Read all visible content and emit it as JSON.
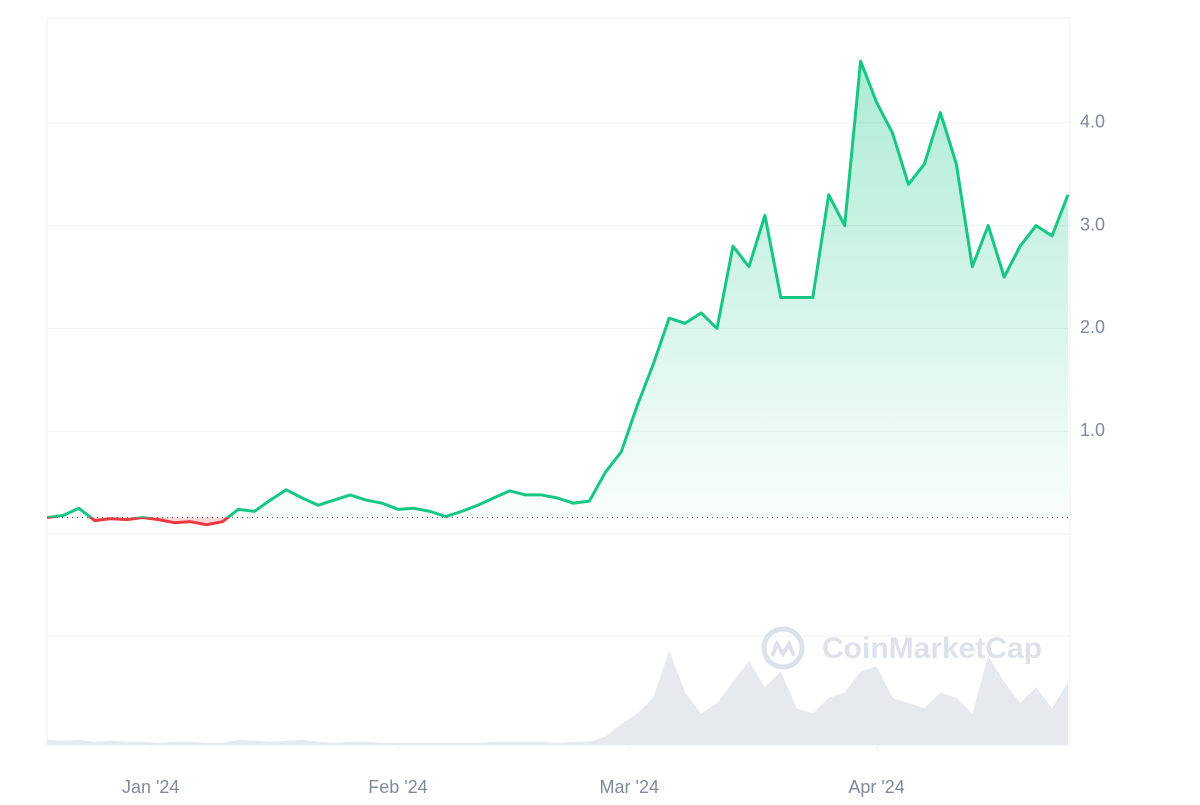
{
  "chart_data": {
    "type": "line",
    "watermark": "CoinMarketCap",
    "x": [
      0,
      2,
      4,
      6,
      8,
      10,
      12,
      14,
      16,
      18,
      20,
      22,
      24,
      26,
      28,
      30,
      32,
      34,
      36,
      38,
      40,
      42,
      44,
      46,
      48,
      50,
      52,
      54,
      56,
      58,
      60,
      62,
      64,
      66,
      68,
      70,
      72,
      74,
      76,
      78,
      80,
      82,
      84,
      86,
      88,
      90,
      92,
      94,
      96,
      98,
      100,
      102,
      104,
      106,
      108,
      110,
      112,
      114,
      116,
      118,
      120,
      122,
      124,
      126,
      128
    ],
    "series": [
      {
        "name": "Price",
        "color": "#16c784",
        "down_color": "#ea3943",
        "values": [
          0.16,
          0.18,
          0.25,
          0.13,
          0.15,
          0.14,
          0.16,
          0.14,
          0.11,
          0.12,
          0.09,
          0.12,
          0.24,
          0.22,
          0.33,
          0.43,
          0.35,
          0.28,
          0.33,
          0.38,
          0.33,
          0.3,
          0.24,
          0.25,
          0.22,
          0.17,
          0.22,
          0.28,
          0.35,
          0.42,
          0.38,
          0.38,
          0.35,
          0.3,
          0.32,
          0.6,
          0.8,
          1.25,
          1.65,
          2.1,
          2.05,
          2.15,
          2.0,
          2.8,
          2.6,
          3.1,
          2.3,
          2.3,
          2.3,
          3.3,
          3.0,
          4.6,
          4.2,
          3.9,
          3.4,
          3.6,
          4.1,
          3.6,
          2.6,
          3.0,
          2.5,
          2.8,
          3.0,
          2.9,
          3.3
        ]
      },
      {
        "name": "Volume",
        "color": "#e6e9ee",
        "axis": "volume",
        "values": [
          5,
          4,
          5,
          3,
          4,
          3,
          3,
          2,
          3,
          3,
          2,
          2,
          5,
          4,
          3,
          4,
          5,
          3,
          2,
          3,
          3,
          2,
          2,
          2,
          2,
          2,
          2,
          2,
          3,
          3,
          3,
          3,
          2,
          3,
          3,
          8,
          20,
          30,
          45,
          90,
          50,
          30,
          40,
          60,
          80,
          55,
          70,
          35,
          30,
          45,
          50,
          70,
          75,
          45,
          40,
          35,
          50,
          45,
          30,
          85,
          60,
          40,
          55,
          35,
          60
        ]
      }
    ],
    "baseline": 0.16,
    "xlim": [
      0,
      128
    ],
    "xticks": [
      {
        "value": 13,
        "label": "Jan '24"
      },
      {
        "value": 44,
        "label": "Feb '24"
      },
      {
        "value": 73,
        "label": "Mar '24"
      },
      {
        "value": 104,
        "label": "Apr '24"
      }
    ],
    "ylim": [
      0,
      5
    ],
    "yticks": [
      {
        "value": 1,
        "label": "1.0"
      },
      {
        "value": 2,
        "label": "2.0"
      },
      {
        "value": 3,
        "label": "3.0"
      },
      {
        "value": 4,
        "label": "4.0"
      }
    ],
    "volume_lim": [
      0,
      100
    ],
    "grid": true
  }
}
